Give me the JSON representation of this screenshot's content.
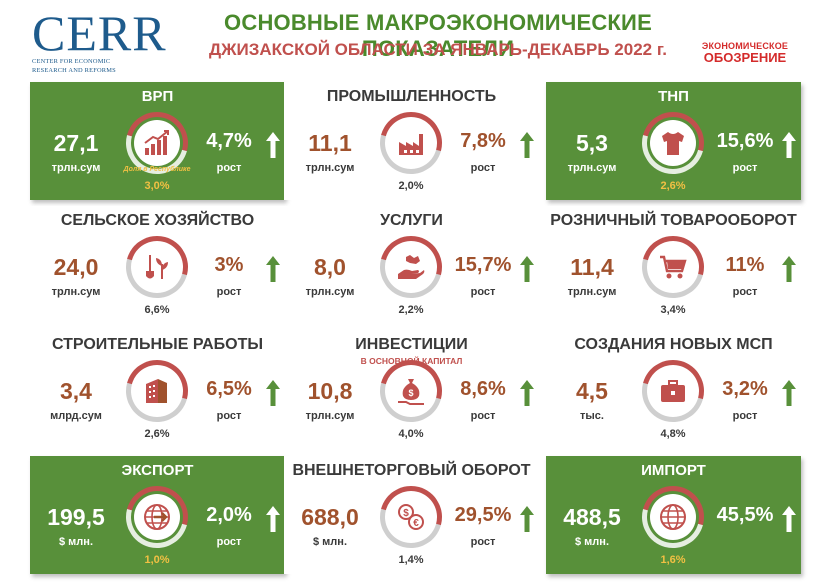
{
  "header": {
    "logo": "CERR",
    "logo_sub1": "Center for Economic",
    "logo_sub2": "Research and Reforms",
    "title1": "ОСНОВНЫЕ МАКРОЭКОНОМИЧЕСКИЕ ПОКАЗАТЕЛИ",
    "title2": "ДЖИЗАКСКОЙ ОБЛАСТИ ЗА ЯНВАРЬ-ДЕКАБРЬ 2022 г.",
    "source_small": "ЭКОНОМИЧЕСКОЕ",
    "source_big": "ОБОЗРЕНИЕ"
  },
  "colors": {
    "green": "#58903a",
    "red": "#c0504d",
    "brown": "#a0522d",
    "dark": "#3a3a3a"
  },
  "cards": [
    {
      "title": "ВРП",
      "value": "27,1",
      "unit": "трлн.сум",
      "share": "3,0%",
      "share_label": "Доля в Республике",
      "growth": "4,7%",
      "growth_label": "рост",
      "icon": "chart-growth-icon",
      "style": "green"
    },
    {
      "title": "ПРОМЫШЛЕННОСТЬ",
      "value": "11,1",
      "unit": "трлн.сум",
      "share": "2,0%",
      "growth": "7,8%",
      "growth_label": "рост",
      "icon": "factory-icon",
      "style": "white"
    },
    {
      "title": "ТНП",
      "value": "5,3",
      "unit": "трлн.сум",
      "share": "2,6%",
      "growth": "15,6%",
      "growth_label": "рост",
      "icon": "tshirt-icon",
      "style": "green"
    },
    {
      "title": "СЕЛЬСКОЕ ХОЗЯЙСТВО",
      "value": "24,0",
      "unit": "трлн.сум",
      "share": "6,6%",
      "growth": "3%",
      "growth_label": "рост",
      "icon": "plant-shovel-icon",
      "style": "white"
    },
    {
      "title": "УСЛУГИ",
      "value": "8,0",
      "unit": "трлн.сум",
      "share": "2,2%",
      "growth": "15,7%",
      "growth_label": "рост",
      "icon": "service-hand-icon",
      "style": "white"
    },
    {
      "title": "РОЗНИЧНЫЙ ТОВАРООБОРОТ",
      "value": "11,4",
      "unit": "трлн.сум",
      "share": "3,4%",
      "growth": "11%",
      "growth_label": "рост",
      "icon": "cart-icon",
      "style": "white"
    },
    {
      "title": "СТРОИТЕЛЬНЫЕ РАБОТЫ",
      "value": "3,4",
      "unit": "млрд.сум",
      "share": "2,6%",
      "growth": "6,5%",
      "growth_label": "рост",
      "icon": "building-icon",
      "style": "white"
    },
    {
      "title": "ИНВЕСТИЦИИ",
      "subtitle": "В ОСНОВНОЙ КАПИТАЛ",
      "value": "10,8",
      "unit": "трлн.сум",
      "share": "4,0%",
      "growth": "8,6%",
      "growth_label": "рост",
      "icon": "money-bag-icon",
      "style": "white"
    },
    {
      "title": "СОЗДАНИЯ НОВЫХ МСП",
      "value": "4,5",
      "unit": "тыс.",
      "share": "4,8%",
      "growth": "3,2%",
      "growth_label": "рост",
      "icon": "briefcase-icon",
      "style": "white"
    },
    {
      "title": "ЭКСПОРТ",
      "value": "199,5",
      "unit": "$ млн.",
      "share": "1,0%",
      "growth": "2,0%",
      "growth_label": "рост",
      "icon": "globe-export-icon",
      "style": "green"
    },
    {
      "title": "ВНЕШНЕТОРГОВЫЙ ОБОРОТ",
      "value": "688,0",
      "unit": "$ млн.",
      "share": "1,4%",
      "growth": "29,5%",
      "growth_label": "рост",
      "icon": "currency-exchange-icon",
      "style": "white"
    },
    {
      "title": "ИМПОРТ",
      "value": "488,5",
      "unit": "$ млн.",
      "share": "1,6%",
      "growth": "45,5%",
      "growth_label": "",
      "icon": "globe-import-icon",
      "style": "green"
    }
  ]
}
